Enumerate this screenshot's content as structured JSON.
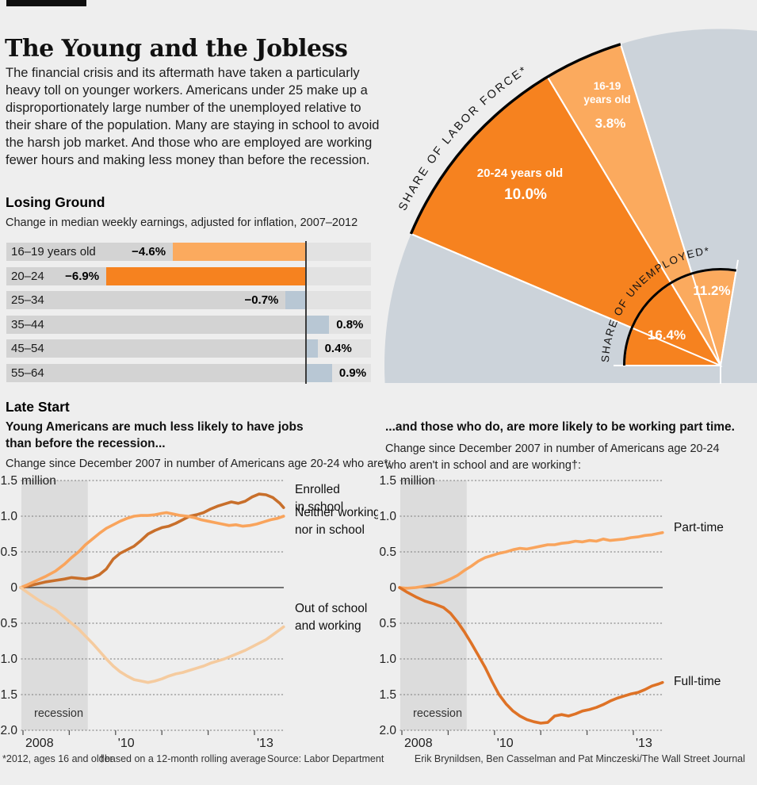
{
  "header": {
    "title": "The Young and the Jobless",
    "intro": "The financial crisis and its aftermath have taken a particularly heavy toll on younger workers. Americans under 25 make up a disproportionately large number of the unemployed relative to their share of the population. Many are staying in school to avoid the harsh job market. And those who are employed are working fewer hours and making less money than before the recession."
  },
  "sections": {
    "late_start_title": "Late Start"
  },
  "chart_data": [
    {
      "id": "share-fan",
      "type": "pie",
      "outer_ring_title": "SHARE OF LABOR FORCE*",
      "inner_ring_title": "SHARE OF UNEMPLOYED*",
      "outer_ring": {
        "name": "Share of labor force",
        "segments": [
          {
            "group": "20-24 years old",
            "pct": 10.0,
            "display": "10.0%"
          },
          {
            "group": "16-19 years old",
            "pct": 3.8,
            "display": "3.8%"
          }
        ]
      },
      "inner_ring": {
        "name": "Share of unemployed",
        "segments": [
          {
            "group": "20-24 years old",
            "pct": 16.4,
            "display": "16.4%"
          },
          {
            "group": "16-19 years old",
            "pct": 11.2,
            "display": "11.2%"
          }
        ]
      },
      "colors": {
        "group_20_24": "#f6821f",
        "group_16_19": "#fbaa5e",
        "background_disc": "#ccd3da"
      },
      "note": "wedge angles proportional to percent of full circle"
    },
    {
      "id": "earnings",
      "type": "bar",
      "title": "Losing Ground",
      "subtitle": "Change in median weekly earnings, adjusted for inflation, 2007–2012",
      "categories": [
        "16–19 years old",
        "20–24",
        "25–34",
        "35–44",
        "45–54",
        "55–64"
      ],
      "values": [
        -4.6,
        -6.9,
        -0.7,
        0.8,
        0.4,
        0.9
      ],
      "value_labels": [
        "−4.6%",
        "−6.9%",
        "−0.7%",
        "0.8%",
        "0.4%",
        "0.9%"
      ],
      "bar_colors": [
        "#fbaa5e",
        "#f6821f",
        "#b8c7d4",
        "#b8c7d4",
        "#b8c7d4",
        "#b8c7d4"
      ],
      "unit": "percent"
    },
    {
      "id": "status-lines",
      "type": "line",
      "heading": "Young Americans are much less likely to have jobs\nthan before the recession...",
      "subheading": "Change since December 2007 in number of Americans age 20-24 who are*:",
      "unit_label": "million",
      "ylim": [
        -2.0,
        1.5
      ],
      "xlim": [
        2007.95,
        2013.63
      ],
      "yticks": [
        1.5,
        1.0,
        0.5,
        0,
        -0.5,
        -1.0,
        -1.5,
        -2.0
      ],
      "ytick_labels": [
        "1.5",
        "1.0",
        "0.5",
        "0",
        "−0.5",
        "−1.0",
        "−1.5",
        "−2.0"
      ],
      "xticks": [
        2008,
        2009,
        2010,
        2011,
        2012,
        2013
      ],
      "xtick_labels": [
        "2008",
        "",
        "'10",
        "",
        "",
        "'13"
      ],
      "recession_label": "recession",
      "recession_span": [
        2007.95,
        2009.4
      ],
      "series": [
        {
          "name": "Enrolled in school",
          "legend_lines": [
            "Enrolled",
            "in school"
          ],
          "color": "#c86f2b",
          "points": [
            [
              2007.95,
              0
            ],
            [
              2008.1,
              0.02
            ],
            [
              2008.3,
              0.05
            ],
            [
              2008.5,
              0.08
            ],
            [
              2008.7,
              0.1
            ],
            [
              2008.9,
              0.12
            ],
            [
              2009.05,
              0.14
            ],
            [
              2009.2,
              0.13
            ],
            [
              2009.35,
              0.12
            ],
            [
              2009.5,
              0.14
            ],
            [
              2009.65,
              0.18
            ],
            [
              2009.8,
              0.26
            ],
            [
              2009.95,
              0.4
            ],
            [
              2010.1,
              0.48
            ],
            [
              2010.25,
              0.53
            ],
            [
              2010.4,
              0.58
            ],
            [
              2010.55,
              0.66
            ],
            [
              2010.7,
              0.75
            ],
            [
              2010.85,
              0.8
            ],
            [
              2011.0,
              0.84
            ],
            [
              2011.15,
              0.86
            ],
            [
              2011.3,
              0.9
            ],
            [
              2011.45,
              0.95
            ],
            [
              2011.6,
              1.0
            ],
            [
              2011.75,
              1.02
            ],
            [
              2011.9,
              1.05
            ],
            [
              2012.05,
              1.1
            ],
            [
              2012.2,
              1.14
            ],
            [
              2012.35,
              1.17
            ],
            [
              2012.5,
              1.2
            ],
            [
              2012.65,
              1.18
            ],
            [
              2012.8,
              1.21
            ],
            [
              2012.95,
              1.27
            ],
            [
              2013.1,
              1.31
            ],
            [
              2013.25,
              1.3
            ],
            [
              2013.4,
              1.26
            ],
            [
              2013.55,
              1.18
            ],
            [
              2013.63,
              1.12
            ]
          ]
        },
        {
          "name": "Neither working nor in school",
          "legend_lines": [
            "Neither working",
            "nor in school"
          ],
          "color": "#f9a45c",
          "points": [
            [
              2007.95,
              0
            ],
            [
              2008.1,
              0.04
            ],
            [
              2008.3,
              0.1
            ],
            [
              2008.5,
              0.16
            ],
            [
              2008.7,
              0.23
            ],
            [
              2008.9,
              0.33
            ],
            [
              2009.05,
              0.42
            ],
            [
              2009.2,
              0.5
            ],
            [
              2009.35,
              0.6
            ],
            [
              2009.5,
              0.68
            ],
            [
              2009.65,
              0.76
            ],
            [
              2009.8,
              0.83
            ],
            [
              2009.95,
              0.88
            ],
            [
              2010.1,
              0.93
            ],
            [
              2010.25,
              0.97
            ],
            [
              2010.4,
              1.0
            ],
            [
              2010.55,
              1.01
            ],
            [
              2010.7,
              1.01
            ],
            [
              2010.85,
              1.02
            ],
            [
              2011.0,
              1.04
            ],
            [
              2011.1,
              1.05
            ],
            [
              2011.25,
              1.03
            ],
            [
              2011.4,
              1.01
            ],
            [
              2011.55,
              1.0
            ],
            [
              2011.7,
              0.98
            ],
            [
              2011.85,
              0.95
            ],
            [
              2012.0,
              0.93
            ],
            [
              2012.15,
              0.91
            ],
            [
              2012.3,
              0.89
            ],
            [
              2012.45,
              0.87
            ],
            [
              2012.6,
              0.88
            ],
            [
              2012.75,
              0.86
            ],
            [
              2012.9,
              0.87
            ],
            [
              2013.05,
              0.89
            ],
            [
              2013.2,
              0.92
            ],
            [
              2013.35,
              0.95
            ],
            [
              2013.5,
              0.97
            ],
            [
              2013.63,
              1.0
            ]
          ]
        },
        {
          "name": "Out of school and working",
          "legend_lines": [
            "Out of school",
            "and working"
          ],
          "color": "#f5cb9f",
          "points": [
            [
              2007.95,
              0
            ],
            [
              2008.1,
              -0.07
            ],
            [
              2008.3,
              -0.16
            ],
            [
              2008.5,
              -0.24
            ],
            [
              2008.7,
              -0.31
            ],
            [
              2008.9,
              -0.42
            ],
            [
              2009.05,
              -0.5
            ],
            [
              2009.2,
              -0.58
            ],
            [
              2009.35,
              -0.68
            ],
            [
              2009.5,
              -0.78
            ],
            [
              2009.65,
              -0.89
            ],
            [
              2009.8,
              -1.0
            ],
            [
              2009.95,
              -1.1
            ],
            [
              2010.1,
              -1.18
            ],
            [
              2010.25,
              -1.24
            ],
            [
              2010.4,
              -1.29
            ],
            [
              2010.55,
              -1.31
            ],
            [
              2010.7,
              -1.33
            ],
            [
              2010.85,
              -1.31
            ],
            [
              2011.0,
              -1.28
            ],
            [
              2011.15,
              -1.24
            ],
            [
              2011.3,
              -1.21
            ],
            [
              2011.45,
              -1.19
            ],
            [
              2011.6,
              -1.16
            ],
            [
              2011.75,
              -1.13
            ],
            [
              2011.9,
              -1.1
            ],
            [
              2012.05,
              -1.06
            ],
            [
              2012.2,
              -1.03
            ],
            [
              2012.35,
              -1.0
            ],
            [
              2012.5,
              -0.96
            ],
            [
              2012.65,
              -0.92
            ],
            [
              2012.8,
              -0.88
            ],
            [
              2012.95,
              -0.83
            ],
            [
              2013.1,
              -0.78
            ],
            [
              2013.25,
              -0.73
            ],
            [
              2013.4,
              -0.66
            ],
            [
              2013.55,
              -0.59
            ],
            [
              2013.63,
              -0.55
            ]
          ]
        }
      ]
    },
    {
      "id": "worktype-lines",
      "type": "line",
      "heading": "...and those who do, are more likely to be working part time.",
      "subheading": "Change since December 2007 in number of Americans age 20-24\nwho aren't in school and are working†:",
      "unit_label": "million",
      "ylim": [
        -2.0,
        1.5
      ],
      "xlim": [
        2007.95,
        2013.63
      ],
      "yticks": [
        1.5,
        1.0,
        0.5,
        0,
        -0.5,
        -1.0,
        -1.5,
        -2.0
      ],
      "ytick_labels": [
        "1.5",
        "1.0",
        "0.5",
        "0",
        "−0.5",
        "−1.0",
        "−1.5",
        "−2.0"
      ],
      "xticks": [
        2008,
        2009,
        2010,
        2011,
        2012,
        2013
      ],
      "xtick_labels": [
        "2008",
        "",
        "'10",
        "",
        "",
        "'13"
      ],
      "recession_label": "recession",
      "recession_span": [
        2007.95,
        2009.4
      ],
      "series": [
        {
          "name": "Part-time",
          "legend_lines": [
            "Part-time"
          ],
          "color": "#f9a45c",
          "points": [
            [
              2007.95,
              0
            ],
            [
              2008.1,
              -0.01
            ],
            [
              2008.3,
              0.0
            ],
            [
              2008.5,
              0.02
            ],
            [
              2008.7,
              0.04
            ],
            [
              2008.9,
              0.08
            ],
            [
              2009.05,
              0.12
            ],
            [
              2009.2,
              0.17
            ],
            [
              2009.35,
              0.24
            ],
            [
              2009.5,
              0.3
            ],
            [
              2009.65,
              0.37
            ],
            [
              2009.8,
              0.42
            ],
            [
              2009.95,
              0.45
            ],
            [
              2010.1,
              0.48
            ],
            [
              2010.25,
              0.5
            ],
            [
              2010.4,
              0.53
            ],
            [
              2010.55,
              0.55
            ],
            [
              2010.7,
              0.54
            ],
            [
              2010.85,
              0.56
            ],
            [
              2011.0,
              0.58
            ],
            [
              2011.15,
              0.6
            ],
            [
              2011.3,
              0.6
            ],
            [
              2011.45,
              0.62
            ],
            [
              2011.6,
              0.63
            ],
            [
              2011.75,
              0.65
            ],
            [
              2011.9,
              0.64
            ],
            [
              2012.05,
              0.66
            ],
            [
              2012.2,
              0.65
            ],
            [
              2012.35,
              0.68
            ],
            [
              2012.5,
              0.66
            ],
            [
              2012.65,
              0.67
            ],
            [
              2012.8,
              0.68
            ],
            [
              2012.95,
              0.7
            ],
            [
              2013.1,
              0.71
            ],
            [
              2013.25,
              0.73
            ],
            [
              2013.4,
              0.74
            ],
            [
              2013.55,
              0.76
            ],
            [
              2013.63,
              0.77
            ]
          ]
        },
        {
          "name": "Full-time",
          "legend_lines": [
            "Full-time"
          ],
          "color": "#de7226",
          "points": [
            [
              2007.95,
              0
            ],
            [
              2008.1,
              -0.06
            ],
            [
              2008.3,
              -0.13
            ],
            [
              2008.5,
              -0.19
            ],
            [
              2008.7,
              -0.23
            ],
            [
              2008.9,
              -0.28
            ],
            [
              2009.05,
              -0.36
            ],
            [
              2009.2,
              -0.48
            ],
            [
              2009.35,
              -0.62
            ],
            [
              2009.5,
              -0.78
            ],
            [
              2009.65,
              -0.95
            ],
            [
              2009.8,
              -1.12
            ],
            [
              2009.95,
              -1.32
            ],
            [
              2010.1,
              -1.5
            ],
            [
              2010.25,
              -1.63
            ],
            [
              2010.4,
              -1.73
            ],
            [
              2010.55,
              -1.8
            ],
            [
              2010.7,
              -1.85
            ],
            [
              2010.85,
              -1.88
            ],
            [
              2011.0,
              -1.9
            ],
            [
              2011.15,
              -1.89
            ],
            [
              2011.3,
              -1.8
            ],
            [
              2011.45,
              -1.78
            ],
            [
              2011.6,
              -1.8
            ],
            [
              2011.75,
              -1.77
            ],
            [
              2011.9,
              -1.73
            ],
            [
              2012.05,
              -1.71
            ],
            [
              2012.2,
              -1.68
            ],
            [
              2012.35,
              -1.64
            ],
            [
              2012.5,
              -1.59
            ],
            [
              2012.65,
              -1.55
            ],
            [
              2012.8,
              -1.52
            ],
            [
              2012.95,
              -1.49
            ],
            [
              2013.1,
              -1.47
            ],
            [
              2013.25,
              -1.43
            ],
            [
              2013.4,
              -1.38
            ],
            [
              2013.55,
              -1.35
            ],
            [
              2013.63,
              -1.33
            ]
          ]
        }
      ]
    }
  ],
  "footer": {
    "note1": "*2012, ages 16 and older",
    "note2": "†based on a 12-month rolling average",
    "source": "Source: Labor Department",
    "credit": "Erik Brynildsen, Ben Casselman and Pat Minczeski/The Wall Street Journal"
  }
}
